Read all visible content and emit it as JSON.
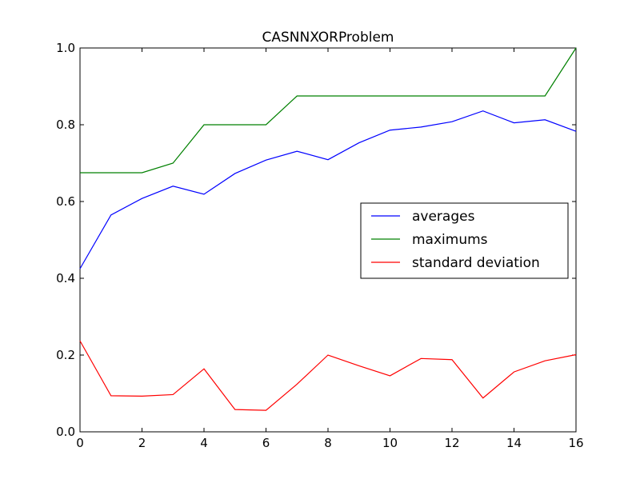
{
  "chart_data": {
    "type": "line",
    "title": "CASNNXORProblem",
    "xlabel": "",
    "ylabel": "",
    "xlim": [
      0,
      16
    ],
    "ylim": [
      0.0,
      1.0
    ],
    "x": [
      0,
      1,
      2,
      3,
      4,
      5,
      6,
      7,
      8,
      9,
      10,
      11,
      12,
      13,
      14,
      15,
      16
    ],
    "x_ticks": [
      "0",
      "2",
      "4",
      "6",
      "8",
      "10",
      "12",
      "14",
      "16"
    ],
    "y_ticks": [
      "0.0",
      "0.2",
      "0.4",
      "0.6",
      "0.8",
      "1.0"
    ],
    "grid": false,
    "legend_position": "center-right",
    "series": [
      {
        "name": "averages",
        "color": "#0000ff",
        "values": [
          0.425,
          0.565,
          0.608,
          0.64,
          0.619,
          0.673,
          0.708,
          0.731,
          0.709,
          0.753,
          0.786,
          0.794,
          0.808,
          0.836,
          0.805,
          0.813,
          0.783
        ]
      },
      {
        "name": "maximums",
        "color": "#008000",
        "values": [
          0.675,
          0.675,
          0.675,
          0.7,
          0.8,
          0.8,
          0.8,
          0.875,
          0.875,
          0.875,
          0.875,
          0.875,
          0.875,
          0.875,
          0.875,
          0.875,
          1.0
        ]
      },
      {
        "name": "standard deviation",
        "color": "#ff0000",
        "values": [
          0.237,
          0.094,
          0.093,
          0.097,
          0.164,
          0.058,
          0.056,
          0.124,
          0.2,
          0.172,
          0.146,
          0.191,
          0.188,
          0.088,
          0.156,
          0.185,
          0.201
        ]
      }
    ]
  }
}
